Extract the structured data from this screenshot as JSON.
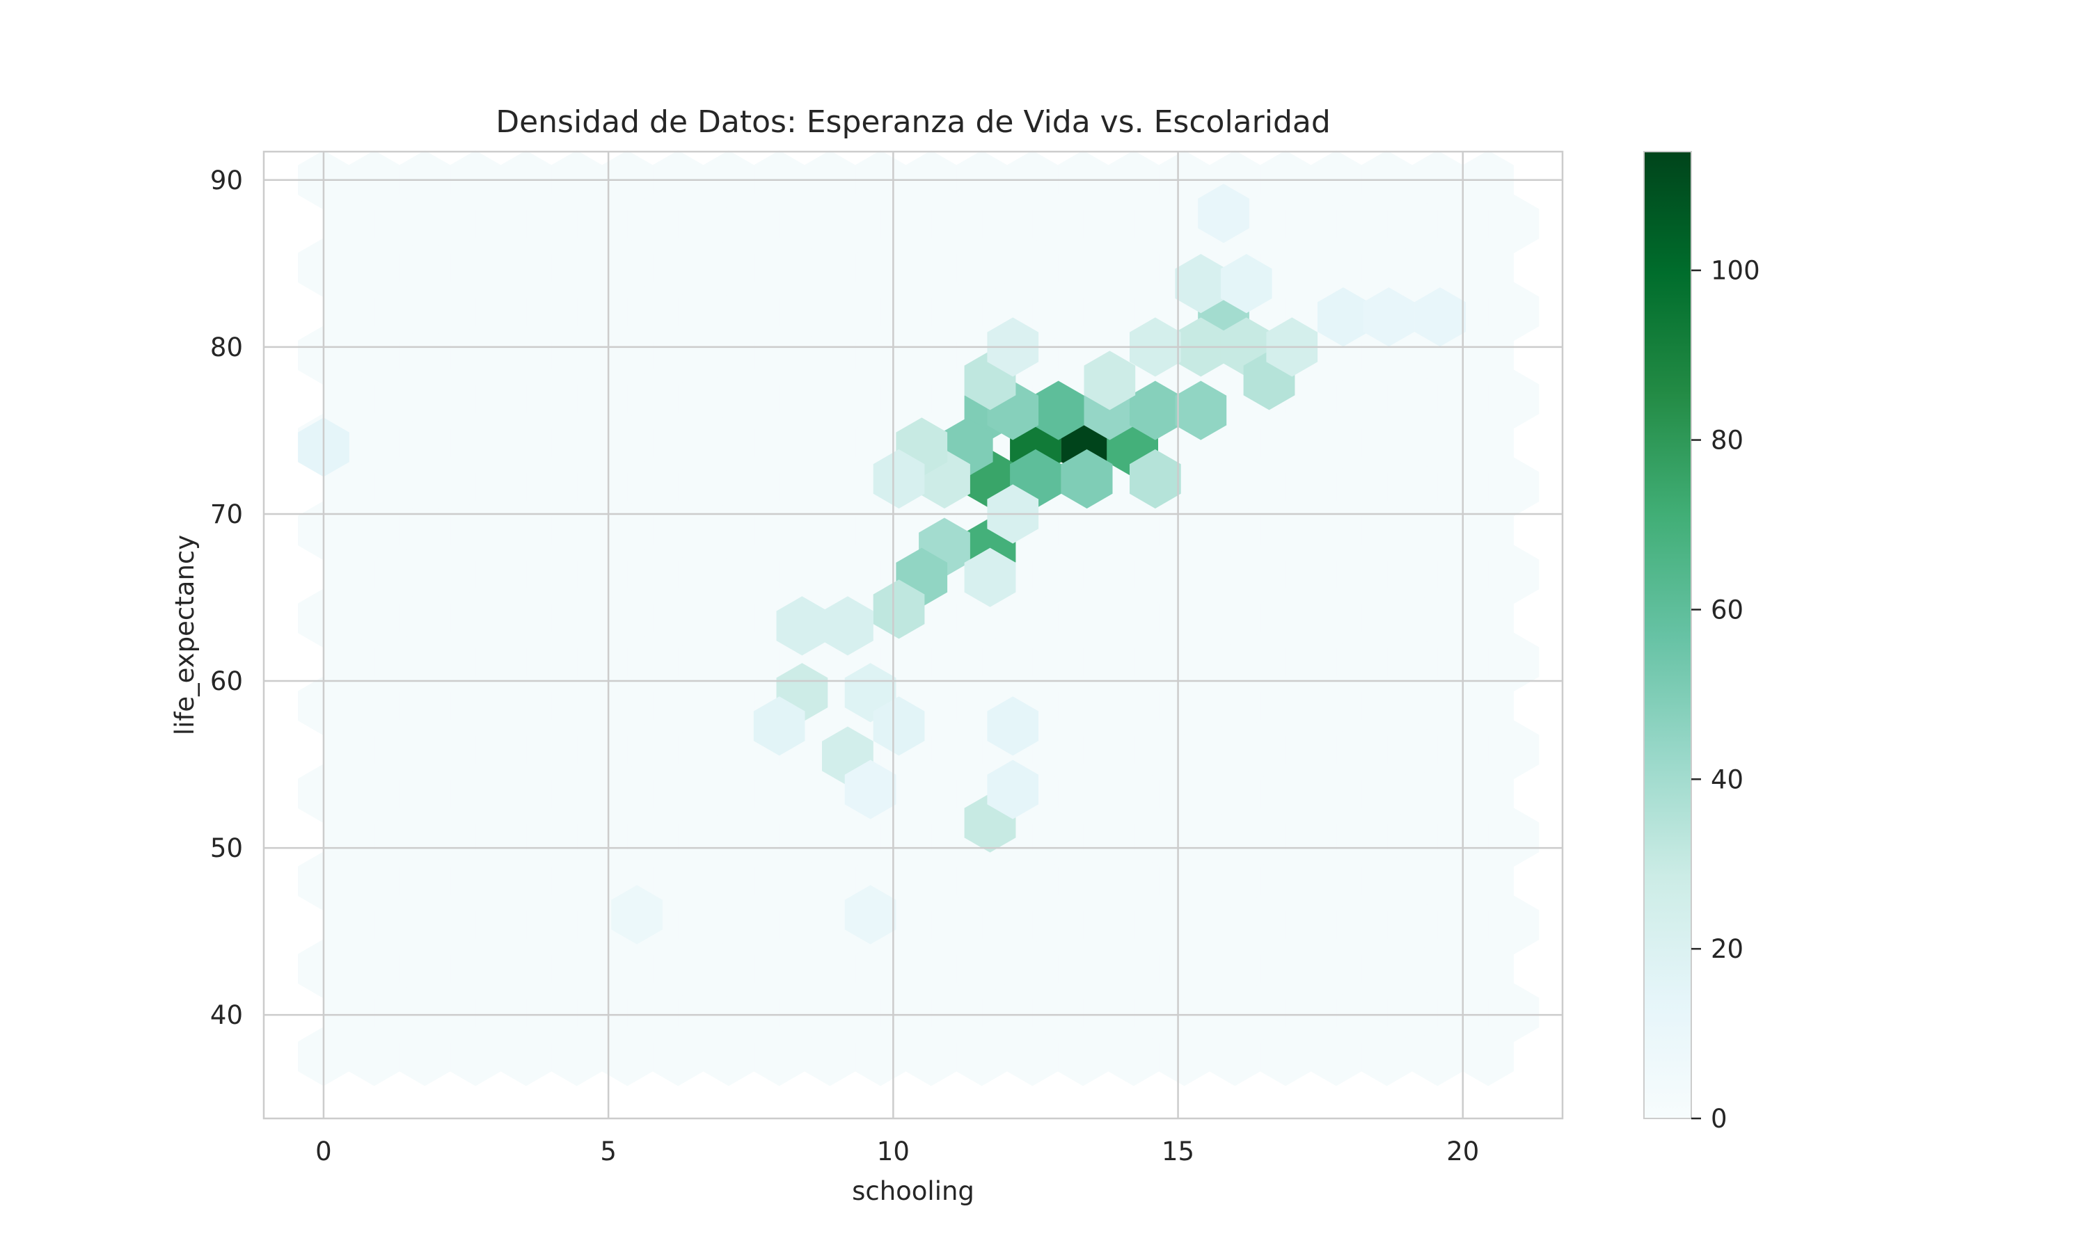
{
  "chart_data": {
    "type": "hexbin",
    "title": "Densidad de Datos: Esperanza de Vida vs. Escolaridad",
    "xlabel": "schooling",
    "ylabel": "life_expectancy",
    "xlim": [
      -1.05,
      21.75
    ],
    "ylim": [
      33.8,
      91.7
    ],
    "xticks": [
      0,
      5,
      10,
      15,
      20
    ],
    "yticks": [
      40,
      50,
      60,
      70,
      80,
      90
    ],
    "grid": true,
    "colormap": "BuGn",
    "colormap_stops": [
      "#f7fcfd",
      "#e5f5f9",
      "#ccece6",
      "#99d8c9",
      "#66c2a4",
      "#41ae76",
      "#238b45",
      "#006d2c",
      "#00441b"
    ],
    "colorbar": {
      "min": 0,
      "max": 114,
      "ticks": [
        0,
        20,
        40,
        60,
        80,
        100
      ]
    },
    "gridsize_hex": {
      "x_span": [
        0,
        21
      ],
      "y_span": [
        36.3,
        90
      ]
    },
    "cells": [
      {
        "x": 11.7,
        "y": 76.2,
        "count": 50
      },
      {
        "x": 12.5,
        "y": 74.0,
        "count": 93
      },
      {
        "x": 13.4,
        "y": 74.0,
        "count": 114
      },
      {
        "x": 14.2,
        "y": 74.0,
        "count": 70
      },
      {
        "x": 11.7,
        "y": 72.1,
        "count": 75
      },
      {
        "x": 12.5,
        "y": 72.1,
        "count": 60
      },
      {
        "x": 13.4,
        "y": 72.1,
        "count": 50
      },
      {
        "x": 11.7,
        "y": 68.0,
        "count": 70
      },
      {
        "x": 12.9,
        "y": 76.2,
        "count": 60
      },
      {
        "x": 12.1,
        "y": 76.2,
        "count": 48
      },
      {
        "x": 13.8,
        "y": 76.2,
        "count": 44
      },
      {
        "x": 14.6,
        "y": 76.2,
        "count": 48
      },
      {
        "x": 15.4,
        "y": 76.2,
        "count": 45
      },
      {
        "x": 11.3,
        "y": 74.0,
        "count": 50
      },
      {
        "x": 14.6,
        "y": 72.1,
        "count": 35
      },
      {
        "x": 10.9,
        "y": 72.1,
        "count": 28
      },
      {
        "x": 10.5,
        "y": 74.0,
        "count": 30
      },
      {
        "x": 10.1,
        "y": 72.1,
        "count": 22
      },
      {
        "x": 10.9,
        "y": 68.0,
        "count": 40
      },
      {
        "x": 10.5,
        "y": 66.2,
        "count": 45
      },
      {
        "x": 10.1,
        "y": 64.3,
        "count": 32
      },
      {
        "x": 11.7,
        "y": 66.2,
        "count": 22
      },
      {
        "x": 12.1,
        "y": 70.0,
        "count": 22
      },
      {
        "x": 15.8,
        "y": 81.8,
        "count": 40
      },
      {
        "x": 15.4,
        "y": 83.8,
        "count": 22
      },
      {
        "x": 16.2,
        "y": 83.8,
        "count": 15
      },
      {
        "x": 15.4,
        "y": 80.0,
        "count": 30
      },
      {
        "x": 16.2,
        "y": 80.0,
        "count": 30
      },
      {
        "x": 16.6,
        "y": 78.0,
        "count": 35
      },
      {
        "x": 17.0,
        "y": 80.0,
        "count": 24
      },
      {
        "x": 11.7,
        "y": 78.0,
        "count": 32
      },
      {
        "x": 12.1,
        "y": 80.0,
        "count": 20
      },
      {
        "x": 13.8,
        "y": 78.0,
        "count": 28
      },
      {
        "x": 14.6,
        "y": 80.0,
        "count": 24
      },
      {
        "x": 11.7,
        "y": 51.5,
        "count": 30
      },
      {
        "x": 8.4,
        "y": 59.3,
        "count": 28
      },
      {
        "x": 9.2,
        "y": 55.5,
        "count": 25
      },
      {
        "x": 8.4,
        "y": 63.3,
        "count": 22
      },
      {
        "x": 9.2,
        "y": 63.3,
        "count": 22
      },
      {
        "x": 9.6,
        "y": 59.3,
        "count": 18
      },
      {
        "x": 8.0,
        "y": 57.3,
        "count": 16
      },
      {
        "x": 10.1,
        "y": 57.3,
        "count": 16
      },
      {
        "x": 12.1,
        "y": 57.3,
        "count": 14
      },
      {
        "x": 12.1,
        "y": 53.5,
        "count": 14
      },
      {
        "x": 9.6,
        "y": 53.5,
        "count": 12
      },
      {
        "x": 0,
        "y": 74.0,
        "count": 14
      },
      {
        "x": 15.8,
        "y": 88.0,
        "count": 12
      },
      {
        "x": 9.6,
        "y": 46.0,
        "count": 10
      },
      {
        "x": 5.5,
        "y": 46.0,
        "count": 9
      },
      {
        "x": 19.6,
        "y": 81.8,
        "count": 12
      },
      {
        "x": 17.9,
        "y": 81.8,
        "count": 14
      },
      {
        "x": 18.7,
        "y": 81.8,
        "count": 12
      }
    ]
  }
}
